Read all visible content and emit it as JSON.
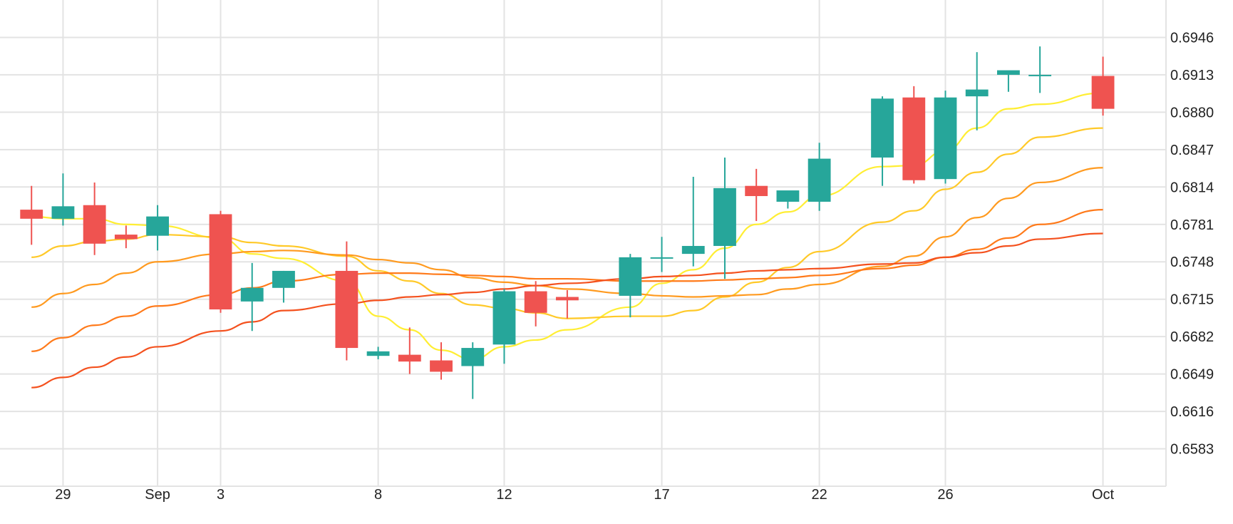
{
  "chart_data": {
    "type": "candlestick",
    "title": "",
    "xlabel": "",
    "ylabel": "",
    "ylim": [
      0.655,
      0.6979
    ],
    "y_ticks": [
      "0.6946",
      "0.6913",
      "0.6880",
      "0.6847",
      "0.6814",
      "0.6781",
      "0.6748",
      "0.6715",
      "0.6682",
      "0.6649",
      "0.6616",
      "0.6583"
    ],
    "x_ticks": [
      {
        "label": "29",
        "date": "2018-08-29"
      },
      {
        "label": "Sep",
        "date": "2018-09-01"
      },
      {
        "label": "3",
        "date": "2018-09-03"
      },
      {
        "label": "8",
        "date": "2018-09-08"
      },
      {
        "label": "12",
        "date": "2018-09-12"
      },
      {
        "label": "17",
        "date": "2018-09-17"
      },
      {
        "label": "22",
        "date": "2018-09-22"
      },
      {
        "label": "26",
        "date": "2018-09-26"
      },
      {
        "label": "Oct",
        "date": "2018-10-01"
      }
    ],
    "x_range": [
      "2018-08-27",
      "2018-10-03"
    ],
    "grid": true,
    "colors": {
      "up": "#26a69a",
      "down": "#ef5350",
      "grid": "#e3e3e3"
    },
    "candles": [
      {
        "date": "2018-08-28",
        "open": 0.6794,
        "high": 0.6815,
        "low": 0.6763,
        "close": 0.6786
      },
      {
        "date": "2018-08-29",
        "open": 0.6786,
        "high": 0.6826,
        "low": 0.678,
        "close": 0.6797
      },
      {
        "date": "2018-08-30",
        "open": 0.6798,
        "high": 0.6818,
        "low": 0.6754,
        "close": 0.6764
      },
      {
        "date": "2018-08-31",
        "open": 0.6772,
        "high": 0.678,
        "low": 0.676,
        "close": 0.6768
      },
      {
        "date": "2018-09-01",
        "open": 0.6771,
        "high": 0.6798,
        "low": 0.6758,
        "close": 0.6788
      },
      {
        "date": "2018-09-03",
        "open": 0.679,
        "high": 0.6793,
        "low": 0.6703,
        "close": 0.6706
      },
      {
        "date": "2018-09-04",
        "open": 0.6713,
        "high": 0.6747,
        "low": 0.6687,
        "close": 0.6725
      },
      {
        "date": "2018-09-05",
        "open": 0.6725,
        "high": 0.674,
        "low": 0.6712,
        "close": 0.674
      },
      {
        "date": "2018-09-07",
        "open": 0.674,
        "high": 0.6766,
        "low": 0.6661,
        "close": 0.6672
      },
      {
        "date": "2018-09-08",
        "open": 0.6665,
        "high": 0.6673,
        "low": 0.6662,
        "close": 0.6669
      },
      {
        "date": "2018-09-09",
        "open": 0.6666,
        "high": 0.669,
        "low": 0.6649,
        "close": 0.666
      },
      {
        "date": "2018-09-10",
        "open": 0.6661,
        "high": 0.6677,
        "low": 0.6644,
        "close": 0.6651
      },
      {
        "date": "2018-09-11",
        "open": 0.6656,
        "high": 0.6677,
        "low": 0.6627,
        "close": 0.6672
      },
      {
        "date": "2018-09-12",
        "open": 0.6675,
        "high": 0.6724,
        "low": 0.6658,
        "close": 0.6722
      },
      {
        "date": "2018-09-13",
        "open": 0.6722,
        "high": 0.6731,
        "low": 0.6691,
        "close": 0.6703
      },
      {
        "date": "2018-09-14",
        "open": 0.6717,
        "high": 0.6723,
        "low": 0.6698,
        "close": 0.6714
      },
      {
        "date": "2018-09-16",
        "open": 0.6718,
        "high": 0.6755,
        "low": 0.6699,
        "close": 0.6752
      },
      {
        "date": "2018-09-17",
        "open": 0.6751,
        "high": 0.677,
        "low": 0.6739,
        "close": 0.6752
      },
      {
        "date": "2018-09-18",
        "open": 0.6755,
        "high": 0.6823,
        "low": 0.6744,
        "close": 0.6762
      },
      {
        "date": "2018-09-19",
        "open": 0.6762,
        "high": 0.684,
        "low": 0.6733,
        "close": 0.6813
      },
      {
        "date": "2018-09-20",
        "open": 0.6815,
        "high": 0.683,
        "low": 0.6784,
        "close": 0.6806
      },
      {
        "date": "2018-09-21",
        "open": 0.6801,
        "high": 0.6809,
        "low": 0.6795,
        "close": 0.6811
      },
      {
        "date": "2018-09-22",
        "open": 0.6801,
        "high": 0.6853,
        "low": 0.6793,
        "close": 0.6839
      },
      {
        "date": "2018-09-24",
        "open": 0.684,
        "high": 0.6894,
        "low": 0.6815,
        "close": 0.6892
      },
      {
        "date": "2018-09-25",
        "open": 0.6893,
        "high": 0.6903,
        "low": 0.6817,
        "close": 0.682
      },
      {
        "date": "2018-09-26",
        "open": 0.6821,
        "high": 0.6899,
        "low": 0.6817,
        "close": 0.6893
      },
      {
        "date": "2018-09-27",
        "open": 0.6894,
        "high": 0.6933,
        "low": 0.6864,
        "close": 0.69
      },
      {
        "date": "2018-09-28",
        "open": 0.6913,
        "high": 0.6916,
        "low": 0.6898,
        "close": 0.6917
      },
      {
        "date": "2018-09-29",
        "open": 0.6913,
        "high": 0.6938,
        "low": 0.6897,
        "close": 0.6913
      },
      {
        "date": "2018-10-01",
        "open": 0.6912,
        "high": 0.6929,
        "low": 0.6877,
        "close": 0.6883
      }
    ],
    "series": [
      {
        "color": "#ffee33",
        "values": [
          [
            "2018-08-28",
            0.6788
          ],
          [
            "2018-08-29",
            0.6786
          ],
          [
            "2018-08-30",
            0.6786
          ],
          [
            "2018-08-31",
            0.6781
          ],
          [
            "2018-09-01",
            0.678
          ],
          [
            "2018-09-03",
            0.6769
          ],
          [
            "2018-09-04",
            0.6755
          ],
          [
            "2018-09-05",
            0.6751
          ],
          [
            "2018-09-07",
            0.6731
          ],
          [
            "2018-09-08",
            0.67
          ],
          [
            "2018-09-09",
            0.6688
          ],
          [
            "2018-09-10",
            0.667
          ],
          [
            "2018-09-11",
            0.6662
          ],
          [
            "2018-09-12",
            0.6673
          ],
          [
            "2018-09-13",
            0.6679
          ],
          [
            "2018-09-14",
            0.6688
          ],
          [
            "2018-09-16",
            0.6708
          ],
          [
            "2018-09-17",
            0.6729
          ],
          [
            "2018-09-18",
            0.6741
          ],
          [
            "2018-09-19",
            0.676
          ],
          [
            "2018-09-20",
            0.6781
          ],
          [
            "2018-09-21",
            0.6792
          ],
          [
            "2018-09-22",
            0.6806
          ],
          [
            "2018-09-24",
            0.6832
          ],
          [
            "2018-09-25",
            0.6833
          ],
          [
            "2018-09-26",
            0.6846
          ],
          [
            "2018-09-27",
            0.6866
          ],
          [
            "2018-09-28",
            0.6883
          ],
          [
            "2018-09-29",
            0.6887
          ],
          [
            "2018-10-01",
            0.6897
          ]
        ]
      },
      {
        "color": "#ffc928",
        "values": [
          [
            "2018-08-28",
            0.6752
          ],
          [
            "2018-08-29",
            0.6762
          ],
          [
            "2018-08-30",
            0.6766
          ],
          [
            "2018-08-31",
            0.6768
          ],
          [
            "2018-09-01",
            0.6772
          ],
          [
            "2018-09-03",
            0.677
          ],
          [
            "2018-09-04",
            0.6765
          ],
          [
            "2018-09-05",
            0.6762
          ],
          [
            "2018-09-07",
            0.6753
          ],
          [
            "2018-09-08",
            0.674
          ],
          [
            "2018-09-09",
            0.6731
          ],
          [
            "2018-09-10",
            0.672
          ],
          [
            "2018-09-11",
            0.671
          ],
          [
            "2018-09-12",
            0.6707
          ],
          [
            "2018-09-13",
            0.6703
          ],
          [
            "2018-09-14",
            0.6698
          ],
          [
            "2018-09-16",
            0.67
          ],
          [
            "2018-09-17",
            0.67
          ],
          [
            "2018-09-18",
            0.6705
          ],
          [
            "2018-09-19",
            0.6717
          ],
          [
            "2018-09-20",
            0.673
          ],
          [
            "2018-09-21",
            0.6743
          ],
          [
            "2018-09-22",
            0.6757
          ],
          [
            "2018-09-24",
            0.6783
          ],
          [
            "2018-09-25",
            0.6793
          ],
          [
            "2018-09-26",
            0.6812
          ],
          [
            "2018-09-27",
            0.6827
          ],
          [
            "2018-09-28",
            0.6843
          ],
          [
            "2018-09-29",
            0.6858
          ],
          [
            "2018-10-01",
            0.6866
          ]
        ]
      },
      {
        "color": "#ff9a1f",
        "values": [
          [
            "2018-08-28",
            0.6708
          ],
          [
            "2018-08-29",
            0.672
          ],
          [
            "2018-08-30",
            0.6728
          ],
          [
            "2018-08-31",
            0.6738
          ],
          [
            "2018-09-01",
            0.6748
          ],
          [
            "2018-09-03",
            0.6755
          ],
          [
            "2018-09-04",
            0.6757
          ],
          [
            "2018-09-05",
            0.6758
          ],
          [
            "2018-09-07",
            0.6754
          ],
          [
            "2018-09-08",
            0.675
          ],
          [
            "2018-09-09",
            0.6747
          ],
          [
            "2018-09-10",
            0.6741
          ],
          [
            "2018-09-11",
            0.6734
          ],
          [
            "2018-09-12",
            0.673
          ],
          [
            "2018-09-13",
            0.6727
          ],
          [
            "2018-09-14",
            0.6724
          ],
          [
            "2018-09-16",
            0.672
          ],
          [
            "2018-09-17",
            0.6718
          ],
          [
            "2018-09-18",
            0.6717
          ],
          [
            "2018-09-19",
            0.6718
          ],
          [
            "2018-09-20",
            0.6719
          ],
          [
            "2018-09-21",
            0.6724
          ],
          [
            "2018-09-22",
            0.6728
          ],
          [
            "2018-09-24",
            0.6744
          ],
          [
            "2018-09-25",
            0.6753
          ],
          [
            "2018-09-26",
            0.677
          ],
          [
            "2018-09-27",
            0.6787
          ],
          [
            "2018-09-28",
            0.6804
          ],
          [
            "2018-09-29",
            0.6818
          ],
          [
            "2018-10-01",
            0.6831
          ]
        ]
      },
      {
        "color": "#ff7a1a",
        "values": [
          [
            "2018-08-28",
            0.6669
          ],
          [
            "2018-08-29",
            0.6681
          ],
          [
            "2018-08-30",
            0.6692
          ],
          [
            "2018-08-31",
            0.67
          ],
          [
            "2018-09-01",
            0.6709
          ],
          [
            "2018-09-03",
            0.6719
          ],
          [
            "2018-09-04",
            0.6725
          ],
          [
            "2018-09-05",
            0.6731
          ],
          [
            "2018-09-07",
            0.6737
          ],
          [
            "2018-09-08",
            0.6738
          ],
          [
            "2018-09-09",
            0.6738
          ],
          [
            "2018-09-10",
            0.6737
          ],
          [
            "2018-09-11",
            0.6736
          ],
          [
            "2018-09-12",
            0.6735
          ],
          [
            "2018-09-13",
            0.6733
          ],
          [
            "2018-09-14",
            0.6733
          ],
          [
            "2018-09-16",
            0.6731
          ],
          [
            "2018-09-17",
            0.6731
          ],
          [
            "2018-09-18",
            0.6731
          ],
          [
            "2018-09-19",
            0.6732
          ],
          [
            "2018-09-20",
            0.6733
          ],
          [
            "2018-09-21",
            0.6734
          ],
          [
            "2018-09-22",
            0.6736
          ],
          [
            "2018-09-24",
            0.6742
          ],
          [
            "2018-09-25",
            0.6745
          ],
          [
            "2018-09-26",
            0.6752
          ],
          [
            "2018-09-27",
            0.6759
          ],
          [
            "2018-09-28",
            0.6769
          ],
          [
            "2018-09-29",
            0.6781
          ],
          [
            "2018-10-01",
            0.6794
          ]
        ]
      },
      {
        "color": "#f4511e",
        "values": [
          [
            "2018-08-28",
            0.6637
          ],
          [
            "2018-08-29",
            0.6646
          ],
          [
            "2018-08-30",
            0.6655
          ],
          [
            "2018-08-31",
            0.6664
          ],
          [
            "2018-09-01",
            0.6673
          ],
          [
            "2018-09-03",
            0.6687
          ],
          [
            "2018-09-04",
            0.6695
          ],
          [
            "2018-09-05",
            0.6705
          ],
          [
            "2018-09-07",
            0.6711
          ],
          [
            "2018-09-08",
            0.6714
          ],
          [
            "2018-09-09",
            0.6717
          ],
          [
            "2018-09-10",
            0.6719
          ],
          [
            "2018-09-11",
            0.6721
          ],
          [
            "2018-09-12",
            0.6724
          ],
          [
            "2018-09-13",
            0.6727
          ],
          [
            "2018-09-14",
            0.6729
          ],
          [
            "2018-09-16",
            0.6733
          ],
          [
            "2018-09-17",
            0.6735
          ],
          [
            "2018-09-18",
            0.6736
          ],
          [
            "2018-09-19",
            0.6738
          ],
          [
            "2018-09-20",
            0.674
          ],
          [
            "2018-09-21",
            0.6741
          ],
          [
            "2018-09-22",
            0.6742
          ],
          [
            "2018-09-24",
            0.6746
          ],
          [
            "2018-09-25",
            0.6747
          ],
          [
            "2018-09-26",
            0.6752
          ],
          [
            "2018-09-27",
            0.6756
          ],
          [
            "2018-09-28",
            0.6762
          ],
          [
            "2018-09-29",
            0.6768
          ],
          [
            "2018-10-01",
            0.6773
          ]
        ]
      }
    ]
  }
}
